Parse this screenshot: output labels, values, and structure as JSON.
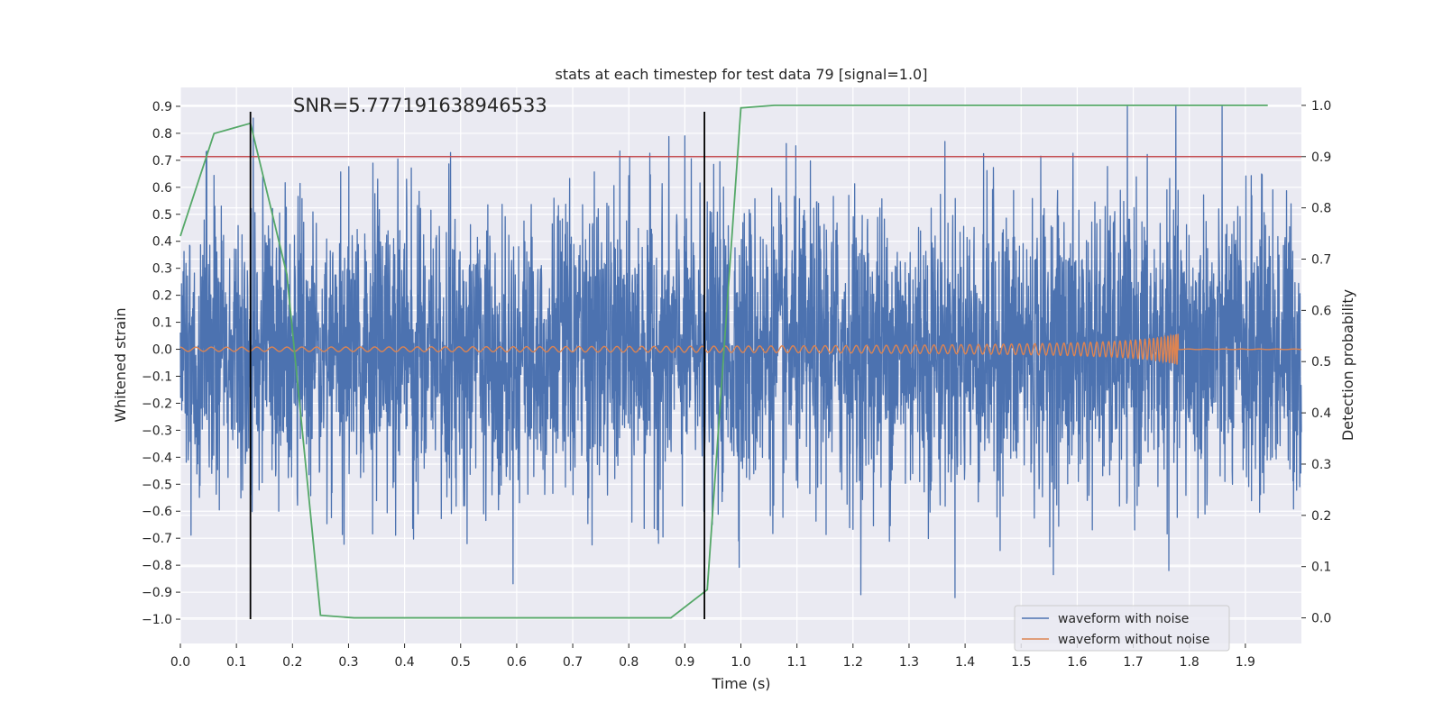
{
  "chart_data": {
    "type": "line",
    "title": "stats at each timestep for test data 79 [signal=1.0]",
    "xlabel": "Time (s)",
    "ylabel": "Whitened strain",
    "ylabel_right": "Detection probability",
    "xlim": [
      0.0,
      2.0
    ],
    "ylim": [
      -1.09,
      0.97
    ],
    "ylim_right": [
      -0.05,
      1.035
    ],
    "x_ticks": [
      "0.0",
      "0.1",
      "0.2",
      "0.3",
      "0.4",
      "0.5",
      "0.6",
      "0.7",
      "0.8",
      "0.9",
      "1.0",
      "1.1",
      "1.2",
      "1.3",
      "1.4",
      "1.5",
      "1.6",
      "1.7",
      "1.8",
      "1.9"
    ],
    "y_ticks": [
      "0.9",
      "0.8",
      "0.7",
      "0.6",
      "0.5",
      "0.4",
      "0.3",
      "0.2",
      "0.1",
      "0.0",
      "−0.1",
      "−0.2",
      "−0.3",
      "−0.4",
      "−0.5",
      "−0.6",
      "−0.7",
      "−0.8",
      "−0.9",
      "−1.0"
    ],
    "y_ticks_right": [
      "1.0",
      "0.9",
      "0.8",
      "0.7",
      "0.6",
      "0.5",
      "0.4",
      "0.3",
      "0.2",
      "0.1",
      "0.0"
    ],
    "annotation": "SNR=5.777191638946533",
    "grid": true,
    "legend": {
      "placement": "lower-right",
      "entries": [
        "waveform with noise",
        "waveform without noise"
      ]
    },
    "series": [
      {
        "name": "waveform with noise",
        "axis": "left",
        "color": "#4c72b0",
        "description": "whitened strain with noise, sampled densely over 0.0–2.0 s, amplitude roughly ±0.9"
      },
      {
        "name": "waveform without noise",
        "axis": "left",
        "color": "#dd8452",
        "description": "chirp signal growing in amplitude and frequency until merger near 1.78 s, then flat at 0"
      },
      {
        "name": "detection probability",
        "axis": "right",
        "color": "#55a868",
        "x": [
          0.0,
          0.06,
          0.125,
          0.19,
          0.25,
          0.31,
          0.5,
          0.75,
          0.875,
          0.94,
          1.0,
          1.06,
          1.25,
          1.5,
          1.75,
          1.94
        ],
        "values": [
          0.745,
          0.945,
          0.965,
          0.67,
          0.005,
          0.0,
          0.0,
          0.0,
          0.0,
          0.055,
          0.995,
          1.0,
          1.0,
          1.0,
          1.0,
          1.0
        ]
      }
    ],
    "hlines_right": [
      {
        "y": 0.9,
        "color": "#c44e52"
      }
    ],
    "vlines": [
      {
        "x": 0.125,
        "ymin": -1.0,
        "ymax": 0.88,
        "color": "#000000"
      },
      {
        "x": 0.935,
        "ymin": -1.0,
        "ymax": 0.88,
        "color": "#000000"
      }
    ]
  }
}
